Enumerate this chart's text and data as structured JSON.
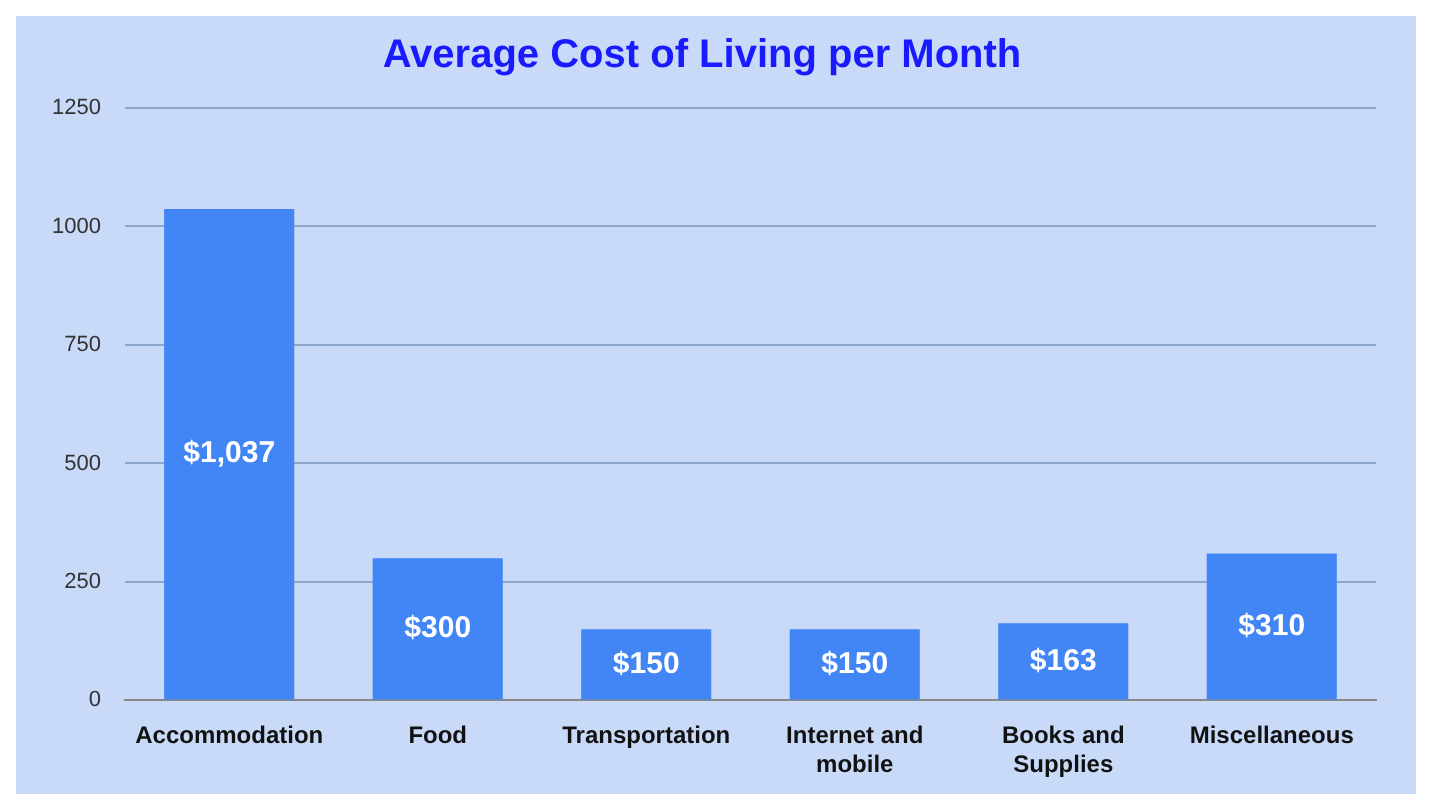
{
  "chart_data": {
    "type": "bar",
    "title": "Average Cost of Living per Month",
    "categories": [
      "Accommodation",
      "Food",
      "Transportation",
      "Internet and mobile",
      "Books and Supplies",
      "Miscellaneous"
    ],
    "values": [
      1037,
      300,
      150,
      150,
      163,
      310
    ],
    "value_labels": [
      "$1,037",
      "$300",
      "$150",
      "$150",
      "$163",
      "$310"
    ],
    "color": "#4285f4",
    "ylim": [
      0,
      1250
    ],
    "yticks": [
      0,
      250,
      500,
      750,
      1000,
      1250
    ],
    "grid": "y"
  }
}
